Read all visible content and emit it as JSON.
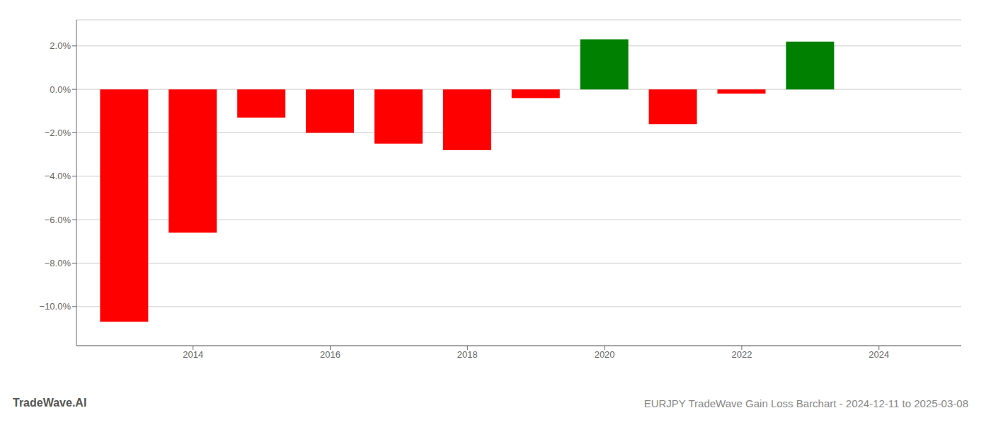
{
  "chart_data": {
    "type": "bar",
    "title": "EURJPY TradeWave Gain Loss Barchart - 2024-12-11 to 2025-03-08",
    "annotations": [
      "TradeWave.AI"
    ],
    "x": [
      2013,
      2014,
      2015,
      2016,
      2017,
      2018,
      2019,
      2020,
      2021,
      2022,
      2023
    ],
    "values": [
      -10.7,
      -6.6,
      -1.3,
      -2.0,
      -2.5,
      -2.8,
      -0.4,
      2.3,
      -1.6,
      -0.2,
      2.2
    ],
    "colors": [
      "#ff0000",
      "#ff0000",
      "#ff0000",
      "#ff0000",
      "#ff0000",
      "#ff0000",
      "#ff0000",
      "#008000",
      "#ff0000",
      "#ff0000",
      "#008000"
    ],
    "xlim": [
      2012.3,
      2025.2
    ],
    "xticks": [
      2014,
      2016,
      2018,
      2020,
      2022,
      2024
    ],
    "ylim": [
      -11.8,
      3.2
    ],
    "yticks": [
      {
        "value": 2.0,
        "label": "2.0%"
      },
      {
        "value": 0.0,
        "label": "0.0%"
      },
      {
        "value": -2.0,
        "label": "−2.0%"
      },
      {
        "value": -4.0,
        "label": "−4.0%"
      },
      {
        "value": -6.0,
        "label": "−6.0%"
      },
      {
        "value": -8.0,
        "label": "−8.0%"
      },
      {
        "value": -10.0,
        "label": "−10.0%"
      }
    ],
    "grid": true
  }
}
